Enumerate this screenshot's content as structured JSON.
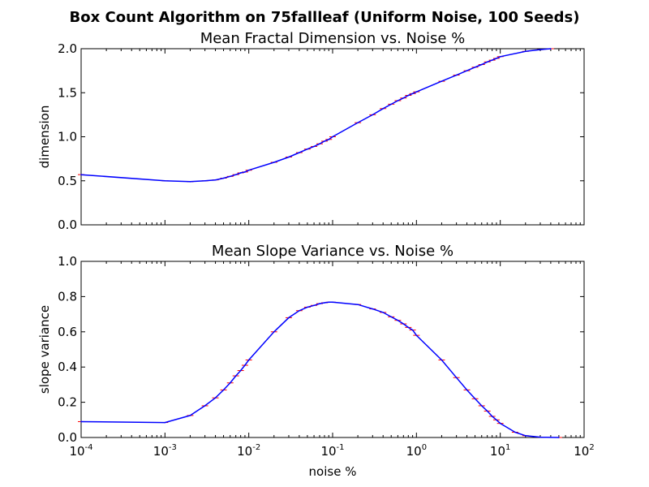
{
  "figure": {
    "title": "Box Count Algorithm on 75fallleaf (Uniform Noise, 100 Seeds)"
  },
  "chart_data": [
    {
      "type": "line",
      "title": "Mean Fractal Dimension vs. Noise %",
      "xlabel": "",
      "ylabel": "dimension",
      "xscale": "log",
      "xlim": [
        0.0001,
        100
      ],
      "ylim": [
        0,
        2.0
      ],
      "yticks": [
        0.0,
        0.5,
        1.0,
        1.5,
        2.0
      ],
      "ytick_labels": [
        "0.0",
        "0.5",
        "1.0",
        "1.5",
        "2.0"
      ],
      "xtick_labels_shown": false,
      "grid": false,
      "line_color": "#0000ff",
      "errorbar_color": "#ff0000",
      "x": [
        0.0001,
        0.001,
        0.002,
        0.003,
        0.004,
        0.005,
        0.006,
        0.007,
        0.008,
        0.009,
        0.01,
        0.02,
        0.03,
        0.04,
        0.05,
        0.06,
        0.07,
        0.08,
        0.09,
        0.1,
        0.2,
        0.3,
        0.4,
        0.5,
        0.6,
        0.7,
        0.8,
        0.9,
        1,
        2,
        3,
        4,
        5,
        6,
        7,
        8,
        9,
        10,
        20,
        30,
        40
      ],
      "y": [
        0.57,
        0.5,
        0.49,
        0.5,
        0.51,
        0.53,
        0.55,
        0.57,
        0.59,
        0.6,
        0.62,
        0.71,
        0.77,
        0.82,
        0.86,
        0.89,
        0.92,
        0.95,
        0.97,
        1.0,
        1.16,
        1.25,
        1.32,
        1.37,
        1.41,
        1.44,
        1.47,
        1.49,
        1.51,
        1.63,
        1.7,
        1.75,
        1.79,
        1.82,
        1.85,
        1.87,
        1.89,
        1.91,
        1.97,
        1.99,
        2.0
      ]
    },
    {
      "type": "line",
      "title": "Mean Slope Variance vs. Noise %",
      "xlabel": "noise %",
      "ylabel": "slope variance",
      "xscale": "log",
      "xlim": [
        0.0001,
        100
      ],
      "ylim": [
        0,
        1.0
      ],
      "yticks": [
        0.0,
        0.2,
        0.4,
        0.6,
        0.8,
        1.0
      ],
      "ytick_labels": [
        "0.0",
        "0.2",
        "0.4",
        "0.6",
        "0.8",
        "1.0"
      ],
      "xticks": [
        0.0001,
        0.001,
        0.01,
        0.1,
        1,
        10,
        100
      ],
      "xtick_labels": [
        {
          "base": "10",
          "exp": "-4"
        },
        {
          "base": "10",
          "exp": "-3"
        },
        {
          "base": "10",
          "exp": "-2"
        },
        {
          "base": "10",
          "exp": "-1"
        },
        {
          "base": "10",
          "exp": "0"
        },
        {
          "base": "10",
          "exp": "1"
        },
        {
          "base": "10",
          "exp": "2"
        }
      ],
      "grid": false,
      "line_color": "#0000ff",
      "errorbar_color": "#ff0000",
      "x": [
        0.0001,
        0.001,
        0.002,
        0.003,
        0.004,
        0.005,
        0.006,
        0.007,
        0.008,
        0.009,
        0.01,
        0.02,
        0.03,
        0.04,
        0.05,
        0.06,
        0.07,
        0.08,
        0.09,
        0.1,
        0.2,
        0.3,
        0.4,
        0.5,
        0.6,
        0.7,
        0.8,
        0.9,
        1,
        2,
        3,
        4,
        5,
        6,
        7,
        8,
        9,
        10,
        15,
        20,
        30,
        50
      ],
      "y": [
        0.09,
        0.085,
        0.125,
        0.18,
        0.225,
        0.27,
        0.31,
        0.35,
        0.38,
        0.41,
        0.44,
        0.6,
        0.68,
        0.72,
        0.74,
        0.75,
        0.76,
        0.765,
        0.768,
        0.768,
        0.755,
        0.73,
        0.71,
        0.685,
        0.665,
        0.645,
        0.625,
        0.61,
        0.58,
        0.44,
        0.34,
        0.27,
        0.22,
        0.18,
        0.15,
        0.12,
        0.1,
        0.08,
        0.03,
        0.01,
        0.002,
        0.0
      ]
    }
  ]
}
